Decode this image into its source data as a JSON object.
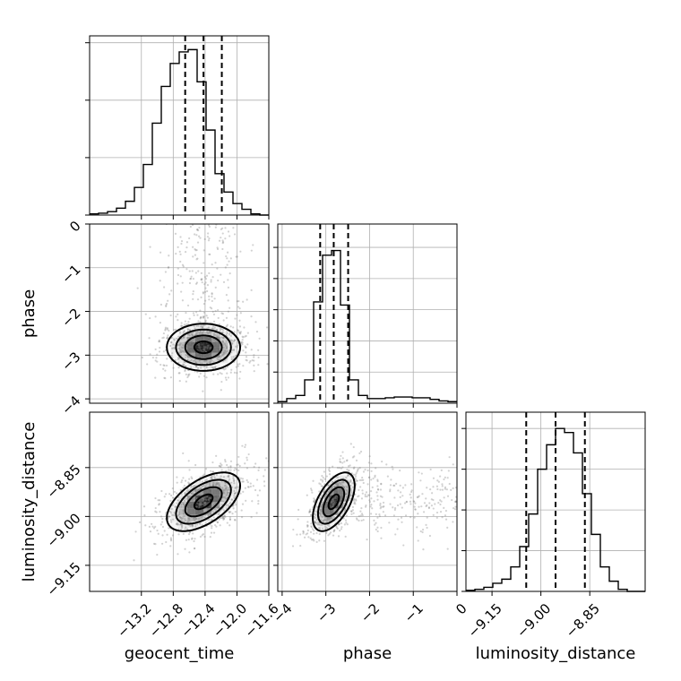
{
  "chart_data": {
    "type": "corner",
    "parameters": [
      "geocent_time",
      "phase",
      "luminosity_distance"
    ],
    "ranges": {
      "geocent_time": [
        -13.85,
        -11.6
      ],
      "phase": [
        -4.1,
        0.0
      ],
      "luminosity_distance": [
        -9.23,
        -8.68
      ]
    },
    "ticks": {
      "geocent_time": {
        "values": [
          -13.2,
          -12.8,
          -12.4,
          -12.0,
          -11.6
        ],
        "labels": [
          "−13.2",
          "−12.8",
          "−12.4",
          "−12.0",
          "−11.6"
        ]
      },
      "phase_y": {
        "values": [
          0,
          -1,
          -2,
          -3,
          -4
        ],
        "labels": [
          "0",
          "−1",
          "−2",
          "−3",
          "−4"
        ]
      },
      "phase_x": {
        "values": [
          -4,
          -3,
          -2,
          -1,
          0
        ],
        "labels": [
          "−4",
          "−3",
          "−2",
          "−1",
          "0"
        ]
      },
      "luminosity_distance": {
        "values": [
          -9.15,
          -9.0,
          -8.85
        ],
        "labels": [
          "−9.15",
          "−9.00",
          "−8.85"
        ]
      }
    },
    "diagonal_histograms": [
      {
        "parameter": "geocent_time",
        "bin_start": -13.85,
        "bin_width": 0.1125,
        "counts": [
          0.5,
          0.8,
          1.5,
          3,
          6,
          12,
          22,
          40,
          56,
          66,
          71,
          72,
          58,
          37,
          18,
          10,
          5,
          2.5,
          0.5,
          0
        ],
        "ymax": 78,
        "quantiles": [
          -12.65,
          -12.42,
          -12.19
        ],
        "hidden_y_ticks": [
          0,
          25,
          50,
          75
        ]
      },
      {
        "parameter": "phase",
        "bin_start": -4.1,
        "bin_width": 0.205,
        "counts": [
          1,
          3,
          5,
          15,
          65,
          95,
          98,
          63,
          15,
          5,
          3,
          3,
          3.5,
          4,
          4,
          3.5,
          3.5,
          2.5,
          1.5,
          1
        ],
        "ymax": 115,
        "quantiles": [
          -3.13,
          -2.82,
          -2.49
        ],
        "hidden_y_ticks": [
          0,
          20,
          40,
          60,
          80,
          100
        ]
      },
      {
        "parameter": "luminosity_distance",
        "bin_start": -9.23,
        "bin_width": 0.0275,
        "counts": [
          0.5,
          1,
          2,
          4,
          6,
          12,
          22,
          38,
          60,
          72,
          80,
          78,
          68,
          48,
          28,
          12,
          5,
          1,
          0,
          0
        ],
        "ymax": 88,
        "quantiles": [
          -9.045,
          -8.955,
          -8.865
        ],
        "hidden_y_ticks": [
          0,
          20,
          40,
          60,
          80
        ]
      }
    ],
    "pair_panels": [
      {
        "x": "geocent_time",
        "y": "phase",
        "center": [
          -12.42,
          -2.82
        ],
        "sigma": [
          0.23,
          0.27
        ],
        "rho": 0.0,
        "contour_levels_sigma": [
          0.5,
          1.0,
          1.5,
          2.0
        ]
      },
      {
        "x": "geocent_time",
        "y": "luminosity_distance",
        "center": [
          -12.42,
          -8.955
        ],
        "sigma": [
          0.23,
          0.045
        ],
        "rho": 0.55,
        "contour_levels_sigma": [
          0.5,
          1.0,
          1.5,
          2.0
        ]
      },
      {
        "x": "phase",
        "y": "luminosity_distance",
        "center": [
          -2.82,
          -8.955
        ],
        "sigma": [
          0.24,
          0.045
        ],
        "rho": 0.55,
        "contour_levels_sigma": [
          0.5,
          1.0,
          1.5,
          2.0
        ]
      }
    ],
    "grid": true,
    "colors": {
      "line": "#000000",
      "grid": "#b0b0b0",
      "scatter": "#7f7f7f"
    }
  }
}
